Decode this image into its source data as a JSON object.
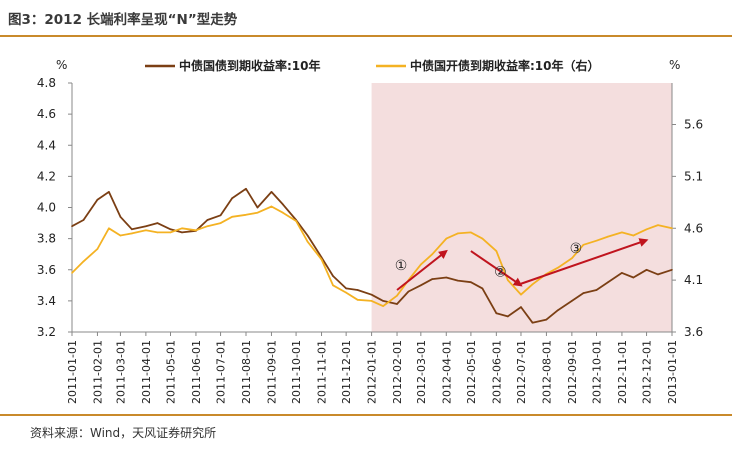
{
  "title": "图3：2012 长端利率呈现“N”型走势",
  "source": "资料来源：Wind，天风证券研究所",
  "colors": {
    "left_series": "#7b3f14",
    "right_series": "#f4b223",
    "shade": "#f4dede",
    "arrow": "#c0141e",
    "rule": "#c98a2b"
  },
  "chart_data": {
    "type": "line",
    "left_unit": "%",
    "right_unit": "%",
    "ylim_left": [
      3.2,
      4.8
    ],
    "ylim_right": [
      3.6,
      6.0
    ],
    "yticks_left": [
      "3.2",
      "3.4",
      "3.6",
      "3.8",
      "4.0",
      "4.2",
      "4.4",
      "4.6",
      "4.8"
    ],
    "yticks_right": [
      "3.6",
      "4.1",
      "4.6",
      "5.1",
      "5.6"
    ],
    "xticks": [
      "2011-01-01",
      "2011-02-01",
      "2011-03-01",
      "2011-04-01",
      "2011-05-01",
      "2011-06-01",
      "2011-07-01",
      "2011-08-01",
      "2011-09-01",
      "2011-10-01",
      "2011-11-01",
      "2011-12-01",
      "2012-01-01",
      "2012-02-01",
      "2012-03-01",
      "2012-04-01",
      "2012-05-01",
      "2012-06-01",
      "2012-07-01",
      "2012-08-01",
      "2012-09-01",
      "2012-10-01",
      "2012-11-01",
      "2012-12-01",
      "2013-01-01"
    ],
    "shaded_region": {
      "from": "2012-01-01",
      "to": "2013-01-01"
    },
    "annotations": [
      {
        "label": "①",
        "at": "2012-02-01",
        "value_left": 3.63,
        "arrow_from": "2012-02-01",
        "from_value": 3.47,
        "arrow_to": "2012-04-01",
        "to_value": 3.72,
        "direction": "up"
      },
      {
        "label": "②",
        "at": "2012-06-01",
        "value_left": 3.59,
        "arrow_from": "2012-05-01",
        "from_value": 3.72,
        "arrow_to": "2012-07-01",
        "to_value": 3.5,
        "direction": "down"
      },
      {
        "label": "③",
        "at": "2012-09-01",
        "value_left": 3.74,
        "arrow_from": "2012-07-01",
        "from_value": 3.51,
        "arrow_to": "2012-12-01",
        "to_value": 3.79,
        "direction": "up"
      }
    ],
    "series": [
      {
        "name": "中债国债到期收益率:10年",
        "axis": "left",
        "x": [
          "2011-01-01",
          "2011-01-15",
          "2011-02-01",
          "2011-02-15",
          "2011-03-01",
          "2011-03-15",
          "2011-04-01",
          "2011-04-15",
          "2011-05-01",
          "2011-05-15",
          "2011-06-01",
          "2011-06-15",
          "2011-07-01",
          "2011-07-15",
          "2011-08-01",
          "2011-08-15",
          "2011-09-01",
          "2011-09-15",
          "2011-10-01",
          "2011-10-15",
          "2011-11-01",
          "2011-11-15",
          "2011-12-01",
          "2011-12-15",
          "2012-01-01",
          "2012-01-15",
          "2012-02-01",
          "2012-02-15",
          "2012-03-01",
          "2012-03-15",
          "2012-04-01",
          "2012-04-15",
          "2012-05-01",
          "2012-05-15",
          "2012-06-01",
          "2012-06-15",
          "2012-07-01",
          "2012-07-15",
          "2012-08-01",
          "2012-08-15",
          "2012-09-01",
          "2012-09-15",
          "2012-10-01",
          "2012-10-15",
          "2012-11-01",
          "2012-11-15",
          "2012-12-01",
          "2012-12-15",
          "2013-01-01"
        ],
        "values": [
          3.88,
          3.92,
          4.05,
          4.1,
          3.94,
          3.86,
          3.88,
          3.9,
          3.86,
          3.84,
          3.85,
          3.92,
          3.95,
          4.06,
          4.12,
          4.0,
          4.1,
          4.02,
          3.92,
          3.82,
          3.68,
          3.56,
          3.48,
          3.47,
          3.44,
          3.4,
          3.38,
          3.46,
          3.5,
          3.54,
          3.55,
          3.53,
          3.52,
          3.48,
          3.32,
          3.3,
          3.36,
          3.26,
          3.28,
          3.34,
          3.4,
          3.45,
          3.47,
          3.52,
          3.58,
          3.55,
          3.6,
          3.57,
          3.6
        ]
      },
      {
        "name": "中债国开债到期收益率:10年（右）",
        "axis": "right",
        "x": [
          "2011-01-01",
          "2011-01-15",
          "2011-02-01",
          "2011-02-15",
          "2011-03-01",
          "2011-03-15",
          "2011-04-01",
          "2011-04-15",
          "2011-05-01",
          "2011-05-15",
          "2011-06-01",
          "2011-06-15",
          "2011-07-01",
          "2011-07-15",
          "2011-08-01",
          "2011-08-15",
          "2011-09-01",
          "2011-09-15",
          "2011-10-01",
          "2011-10-15",
          "2011-11-01",
          "2011-11-15",
          "2011-12-01",
          "2011-12-15",
          "2012-01-01",
          "2012-01-15",
          "2012-02-01",
          "2012-02-15",
          "2012-03-01",
          "2012-03-15",
          "2012-04-01",
          "2012-04-15",
          "2012-05-01",
          "2012-05-15",
          "2012-06-01",
          "2012-06-15",
          "2012-07-01",
          "2012-07-15",
          "2012-08-01",
          "2012-08-15",
          "2012-09-01",
          "2012-09-15",
          "2012-10-01",
          "2012-10-15",
          "2012-11-01",
          "2012-11-15",
          "2012-12-01",
          "2012-12-15",
          "2013-01-01"
        ],
        "values": [
          4.17,
          4.28,
          4.4,
          4.6,
          4.53,
          4.55,
          4.58,
          4.56,
          4.56,
          4.6,
          4.58,
          4.62,
          4.65,
          4.71,
          4.73,
          4.75,
          4.81,
          4.75,
          4.67,
          4.47,
          4.3,
          4.05,
          3.98,
          3.91,
          3.9,
          3.85,
          3.95,
          4.1,
          4.25,
          4.35,
          4.5,
          4.55,
          4.56,
          4.5,
          4.38,
          4.1,
          3.96,
          4.06,
          4.16,
          4.22,
          4.31,
          4.44,
          4.48,
          4.52,
          4.56,
          4.53,
          4.59,
          4.63,
          4.6
        ]
      }
    ]
  }
}
